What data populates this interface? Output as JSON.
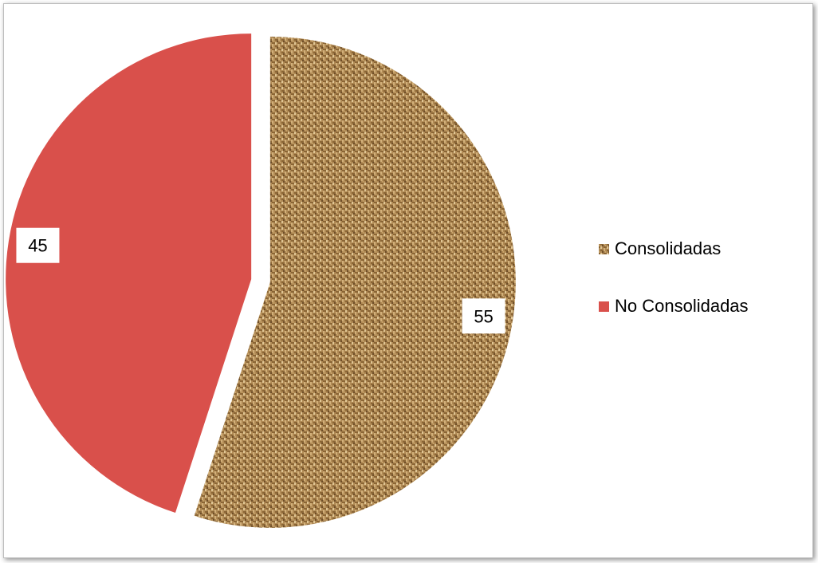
{
  "chart_data": {
    "type": "pie",
    "categories": [
      "Consolidadas",
      "No Consolidadas"
    ],
    "values": [
      55,
      45
    ],
    "data_labels": [
      "55",
      "45"
    ],
    "colors": [
      "#b08a55",
      "#d9504b"
    ],
    "texture": "burlap",
    "exploded": true,
    "legend": "right",
    "title": ""
  }
}
